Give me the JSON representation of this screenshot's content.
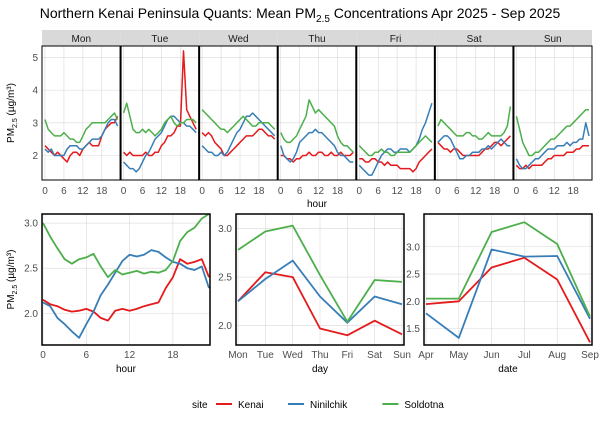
{
  "chart_data": [
    {
      "id": "by_day_hour",
      "type": "line",
      "title": "Northern Kenai Peninsula Quants: Mean PM2.5 Concentrations Apr 2025 - Sep 2025",
      "title_main": "Northern Kenai Peninsula Quants: Mean PM",
      "title_sub": "2.5",
      "title_tail": " Concentrations Apr 2025 - Sep 2025",
      "facets": [
        "Mon",
        "Tue",
        "Wed",
        "Thu",
        "Fri",
        "Sat",
        "Sun"
      ],
      "xlabel": "hour",
      "ylabel": "PM2.5 (µg/m³)",
      "ylabel_main": "PM",
      "ylabel_sub": "2.5",
      "ylabel_tail": " (µg/m³)",
      "x_ticks": [
        0,
        6,
        12,
        18
      ],
      "y_ticks": [
        2,
        3,
        4,
        5
      ],
      "xlim": [
        0,
        23
      ],
      "ylim": [
        1.25,
        5.35
      ],
      "series": [
        {
          "name": "Kenai",
          "values": [
            [
              2.3,
              2.2,
              2.1,
              2.0,
              2.1,
              2.0,
              1.9,
              1.8,
              2.0,
              2.1,
              2.1,
              2.0,
              2.2,
              2.3,
              2.4,
              2.3,
              2.3,
              2.3,
              2.6,
              2.8,
              2.9,
              3.0,
              3.0,
              3.2
            ],
            [
              2.1,
              2.0,
              2.1,
              2.0,
              2.0,
              2.0,
              2.0,
              2.1,
              2.0,
              2.0,
              2.1,
              2.1,
              2.3,
              2.4,
              2.6,
              2.6,
              2.7,
              2.9,
              2.9,
              5.2,
              3.4,
              3.2,
              3.0,
              2.8
            ],
            [
              2.7,
              2.6,
              2.7,
              2.6,
              2.4,
              2.3,
              2.2,
              2.0,
              2.0,
              2.1,
              2.2,
              2.3,
              2.4,
              2.5,
              2.6,
              2.6,
              2.6,
              2.7,
              2.8,
              2.8,
              2.7,
              2.6,
              2.6,
              2.5
            ],
            [
              2.0,
              2.0,
              1.9,
              1.9,
              1.8,
              1.9,
              1.9,
              2.0,
              2.0,
              2.1,
              2.0,
              2.0,
              2.1,
              2.1,
              2.0,
              2.0,
              2.1,
              2.0,
              2.0,
              2.1,
              2.0,
              2.0,
              2.0,
              2.1
            ],
            [
              1.9,
              1.9,
              1.8,
              1.8,
              1.9,
              1.9,
              1.8,
              1.8,
              1.7,
              1.8,
              1.7,
              1.7,
              1.7,
              1.6,
              1.6,
              1.6,
              1.6,
              1.5,
              1.6,
              1.8,
              1.9,
              2.0,
              2.1,
              2.2
            ],
            [
              2.4,
              2.3,
              2.2,
              2.2,
              2.1,
              2.2,
              2.2,
              2.1,
              2.0,
              2.0,
              2.0,
              2.0,
              2.0,
              2.0,
              2.1,
              2.2,
              2.2,
              2.3,
              2.4,
              2.4,
              2.3,
              2.4,
              2.5,
              2.6
            ],
            [
              1.7,
              1.6,
              1.6,
              1.7,
              1.6,
              1.7,
              1.7,
              1.7,
              1.7,
              1.8,
              1.9,
              1.9,
              2.0,
              2.0,
              2.0,
              2.0,
              2.1,
              2.1,
              2.1,
              2.2,
              2.2,
              2.3,
              2.3,
              2.3
            ]
          ]
        },
        {
          "name": "Ninilchik",
          "values": [
            [
              2.2,
              2.1,
              2.2,
              2.0,
              2.0,
              2.0,
              2.0,
              2.2,
              2.3,
              2.3,
              2.3,
              2.2,
              2.2,
              2.3,
              2.4,
              2.5,
              2.5,
              2.5,
              2.6,
              2.8,
              3.0,
              3.1,
              3.1,
              2.9
            ],
            [
              1.8,
              1.7,
              1.6,
              1.6,
              1.5,
              1.6,
              1.8,
              2.0,
              2.1,
              2.3,
              2.5,
              2.6,
              2.7,
              2.9,
              3.1,
              3.2,
              3.2,
              3.1,
              3.0,
              3.0,
              2.9,
              2.9,
              2.8,
              2.7
            ],
            [
              2.3,
              2.2,
              2.1,
              2.1,
              2.0,
              2.0,
              2.1,
              2.0,
              2.1,
              2.3,
              2.5,
              2.7,
              2.8,
              3.0,
              3.2,
              3.2,
              3.3,
              3.2,
              3.1,
              3.0,
              2.9,
              2.8,
              2.7,
              2.6
            ],
            [
              2.3,
              2.0,
              1.9,
              1.8,
              1.9,
              2.1,
              2.4,
              2.5,
              2.6,
              2.7,
              2.7,
              2.8,
              2.7,
              2.7,
              2.6,
              2.5,
              2.4,
              2.3,
              2.1,
              2.0,
              2.0,
              1.9,
              1.8,
              1.8
            ],
            [
              1.7,
              1.6,
              1.5,
              1.4,
              1.4,
              1.6,
              1.8,
              2.0,
              2.1,
              2.2,
              2.2,
              2.1,
              2.1,
              2.2,
              2.2,
              2.2,
              2.1,
              2.2,
              2.3,
              2.5,
              2.8,
              3.0,
              3.3,
              3.6
            ],
            [
              2.4,
              2.5,
              2.6,
              2.6,
              2.5,
              2.3,
              2.1,
              1.9,
              1.9,
              2.0,
              2.0,
              2.1,
              2.1,
              2.1,
              2.2,
              2.2,
              2.3,
              2.2,
              2.3,
              2.4,
              2.5,
              2.4,
              2.3,
              2.3
            ],
            [
              1.9,
              1.7,
              1.6,
              1.6,
              1.7,
              1.8,
              1.9,
              1.9,
              2.0,
              2.1,
              2.2,
              2.2,
              2.2,
              2.3,
              2.3,
              2.3,
              2.4,
              2.3,
              2.4,
              2.4,
              2.5,
              2.5,
              3.0,
              2.6
            ]
          ]
        },
        {
          "name": "Soldotna",
          "values": [
            [
              3.1,
              2.8,
              2.7,
              2.6,
              2.6,
              2.6,
              2.7,
              2.6,
              2.5,
              2.5,
              2.4,
              2.4,
              2.6,
              2.8,
              2.9,
              3.0,
              3.0,
              3.0,
              3.0,
              3.0,
              3.1,
              3.2,
              3.3,
              3.1
            ],
            [
              3.3,
              3.6,
              3.2,
              2.8,
              2.7,
              2.7,
              2.8,
              2.7,
              2.8,
              2.7,
              2.6,
              2.7,
              2.8,
              3.0,
              3.1,
              3.2,
              3.0,
              2.9,
              3.0,
              3.0,
              3.1,
              3.1,
              3.1,
              3.0
            ],
            [
              3.4,
              3.3,
              3.2,
              3.1,
              3.0,
              2.9,
              2.8,
              2.8,
              2.7,
              2.8,
              2.9,
              3.0,
              3.1,
              3.2,
              3.1,
              3.0,
              2.9,
              2.9,
              3.0,
              3.0,
              3.0,
              3.0,
              2.9,
              2.8
            ],
            [
              2.7,
              2.5,
              2.4,
              2.4,
              2.5,
              2.6,
              2.8,
              3.0,
              3.2,
              3.7,
              3.5,
              3.3,
              3.4,
              3.3,
              3.2,
              3.1,
              3.0,
              2.9,
              2.6,
              2.4,
              2.3,
              2.3,
              2.2,
              2.1
            ],
            [
              2.3,
              2.2,
              2.1,
              2.0,
              2.0,
              2.1,
              2.1,
              2.2,
              2.1,
              2.1,
              2.0,
              2.0,
              2.1,
              2.1,
              2.1,
              2.1,
              2.1,
              2.2,
              2.3,
              2.4,
              2.5,
              2.6,
              2.5,
              2.4
            ],
            [
              2.9,
              3.1,
              3.0,
              2.9,
              2.8,
              2.7,
              2.6,
              2.6,
              2.6,
              2.7,
              2.7,
              2.6,
              2.6,
              2.5,
              2.5,
              2.6,
              2.7,
              2.6,
              2.6,
              2.6,
              2.6,
              2.7,
              2.9,
              3.5
            ],
            [
              3.2,
              2.8,
              2.4,
              2.2,
              2.0,
              2.0,
              2.1,
              2.1,
              2.2,
              2.3,
              2.4,
              2.5,
              2.5,
              2.6,
              2.7,
              2.8,
              2.9,
              2.9,
              3.0,
              3.1,
              3.2,
              3.3,
              3.4,
              3.4
            ]
          ]
        }
      ]
    },
    {
      "id": "by_hour",
      "type": "line",
      "xlabel": "hour",
      "ylabel": "PM2.5 (µg/m³)",
      "ylabel_main": "PM",
      "ylabel_sub": "2.5",
      "ylabel_tail": " (µg/m³)",
      "x": [
        0,
        1,
        2,
        3,
        4,
        5,
        6,
        7,
        8,
        9,
        10,
        11,
        12,
        13,
        14,
        15,
        16,
        17,
        18,
        19,
        20,
        21,
        22,
        23
      ],
      "x_ticks": [
        0,
        6,
        12,
        18
      ],
      "y_ticks": [
        2.0,
        2.5,
        3.0
      ],
      "y_tick_labels": [
        "2.0",
        "2.5",
        "3.0"
      ],
      "xlim": [
        0,
        23
      ],
      "ylim": [
        1.65,
        3.1
      ],
      "series": [
        {
          "name": "Kenai",
          "values": [
            2.15,
            2.1,
            2.08,
            2.04,
            2.02,
            2.03,
            2.05,
            2.02,
            1.95,
            1.92,
            2.03,
            2.05,
            2.03,
            2.05,
            2.08,
            2.1,
            2.12,
            2.28,
            2.4,
            2.6,
            2.55,
            2.57,
            2.6,
            2.4
          ]
        },
        {
          "name": "Ninilchik",
          "values": [
            2.12,
            2.08,
            1.95,
            1.88,
            1.8,
            1.73,
            1.88,
            2.02,
            2.2,
            2.32,
            2.45,
            2.58,
            2.65,
            2.63,
            2.65,
            2.7,
            2.68,
            2.62,
            2.57,
            2.55,
            2.5,
            2.48,
            2.52,
            2.28
          ]
        },
        {
          "name": "Soldotna",
          "values": [
            3.0,
            2.85,
            2.72,
            2.6,
            2.55,
            2.6,
            2.62,
            2.66,
            2.52,
            2.4,
            2.48,
            2.43,
            2.45,
            2.47,
            2.44,
            2.46,
            2.45,
            2.48,
            2.58,
            2.8,
            2.9,
            2.95,
            3.05,
            3.1
          ]
        }
      ]
    },
    {
      "id": "by_day",
      "type": "line",
      "xlabel": "day",
      "categories": [
        "Mon",
        "Tue",
        "Wed",
        "Thu",
        "Fri",
        "Sat",
        "Sun"
      ],
      "y_ticks": [
        2.0,
        2.5,
        3.0
      ],
      "y_tick_labels": [
        "2.0",
        "2.5",
        "3.0"
      ],
      "ylim": [
        1.8,
        3.15
      ],
      "series": [
        {
          "name": "Kenai",
          "values": [
            2.25,
            2.55,
            2.5,
            1.97,
            1.9,
            2.05,
            1.91
          ]
        },
        {
          "name": "Ninilchik",
          "values": [
            2.25,
            2.48,
            2.67,
            2.3,
            2.03,
            2.3,
            2.22
          ]
        },
        {
          "name": "Soldotna",
          "values": [
            2.78,
            2.97,
            3.03,
            2.52,
            2.04,
            2.47,
            2.45
          ]
        }
      ]
    },
    {
      "id": "by_month",
      "type": "line",
      "xlabel": "date",
      "categories": [
        "Apr",
        "May",
        "Jun",
        "Jul",
        "Aug",
        "Sep"
      ],
      "y_ticks": [
        1.5,
        2.0,
        2.5,
        3.0
      ],
      "y_tick_labels": [
        "1.5",
        "2.0",
        "2.5",
        "3.0"
      ],
      "ylim": [
        1.2,
        3.6
      ],
      "series": [
        {
          "name": "Kenai",
          "values": [
            1.95,
            2.0,
            2.62,
            2.8,
            2.4,
            1.25
          ]
        },
        {
          "name": "Ninilchik",
          "values": [
            1.78,
            1.33,
            2.95,
            2.82,
            2.83,
            1.68
          ]
        },
        {
          "name": "Soldotna",
          "values": [
            2.05,
            2.05,
            3.27,
            3.45,
            3.05,
            1.72
          ]
        }
      ]
    }
  ],
  "legend": {
    "title": "site",
    "entries": [
      {
        "name": "Kenai",
        "color": "#e41a1c"
      },
      {
        "name": "Ninilchik",
        "color": "#377eb8"
      },
      {
        "name": "Soldotna",
        "color": "#4daf4a"
      }
    ]
  },
  "colors": {
    "Kenai": "#e41a1c",
    "Ninilchik": "#377eb8",
    "Soldotna": "#4daf4a",
    "strip": "#d9d9d9",
    "grid": "#d9d9d9"
  }
}
